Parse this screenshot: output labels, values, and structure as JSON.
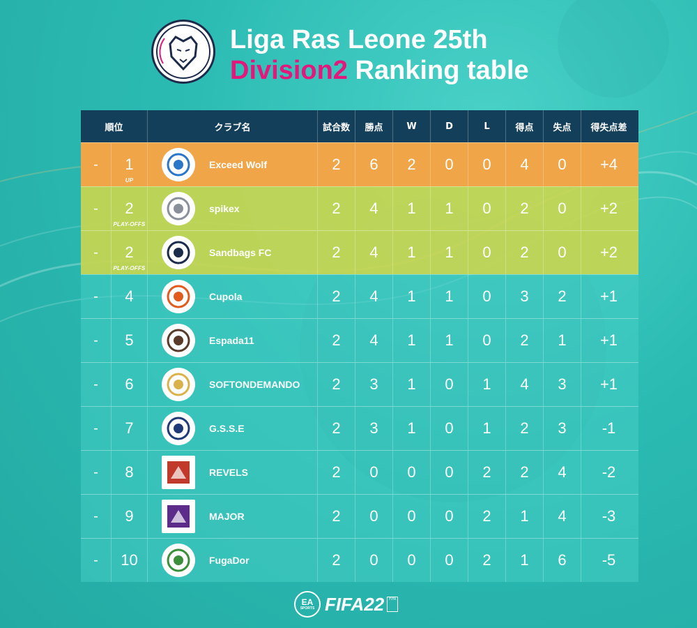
{
  "header": {
    "title_line1": "Liga Ras Leone 25th",
    "title_highlight": "Division2",
    "title_rest": " Ranking table",
    "logo_text": "Liga Ras Leone"
  },
  "columns": {
    "rank": "順位",
    "club": "クラブ名",
    "played": "試合数",
    "points": "勝点",
    "w": "W",
    "d": "D",
    "l": "L",
    "gf": "得点",
    "ga": "失点",
    "gd": "得失点差"
  },
  "rows": [
    {
      "status": "-",
      "rank": "1",
      "note": "UP",
      "club": "Exceed Wolf",
      "icon": "wolf-emblem",
      "played": "2",
      "points": "6",
      "w": "2",
      "d": "0",
      "l": "0",
      "gf": "4",
      "ga": "0",
      "gd": "+4"
    },
    {
      "status": "-",
      "rank": "2",
      "note": "PLAY-OFFS",
      "club": "spikex",
      "icon": "shoe-emblem",
      "played": "2",
      "points": "4",
      "w": "1",
      "d": "1",
      "l": "0",
      "gf": "2",
      "ga": "0",
      "gd": "+2"
    },
    {
      "status": "-",
      "rank": "2",
      "note": "PLAY-OFFS",
      "club": "Sandbags FC",
      "icon": "bottle-emblem",
      "played": "2",
      "points": "4",
      "w": "1",
      "d": "1",
      "l": "0",
      "gf": "2",
      "ga": "0",
      "gd": "+2"
    },
    {
      "status": "-",
      "rank": "4",
      "note": "",
      "club": "Cupola",
      "icon": "flame-emblem",
      "played": "2",
      "points": "4",
      "w": "1",
      "d": "1",
      "l": "0",
      "gf": "3",
      "ga": "2",
      "gd": "+1"
    },
    {
      "status": "-",
      "rank": "5",
      "note": "",
      "club": "Espada11",
      "icon": "bear-emblem",
      "played": "2",
      "points": "4",
      "w": "1",
      "d": "1",
      "l": "0",
      "gf": "2",
      "ga": "1",
      "gd": "+1"
    },
    {
      "status": "-",
      "rank": "6",
      "note": "",
      "club": "SOFTONDEMANDO",
      "icon": "wing-shield-emblem",
      "played": "2",
      "points": "3",
      "w": "1",
      "d": "0",
      "l": "1",
      "gf": "4",
      "ga": "3",
      "gd": "+1"
    },
    {
      "status": "-",
      "rank": "7",
      "note": "",
      "club": "G.S.S.E",
      "icon": "star-crest-emblem",
      "played": "2",
      "points": "3",
      "w": "1",
      "d": "0",
      "l": "1",
      "gf": "2",
      "ga": "3",
      "gd": "-1"
    },
    {
      "status": "-",
      "rank": "8",
      "note": "",
      "club": "REVELS",
      "icon": "revels-emblem",
      "played": "2",
      "points": "0",
      "w": "0",
      "d": "0",
      "l": "2",
      "gf": "2",
      "ga": "4",
      "gd": "-2"
    },
    {
      "status": "-",
      "rank": "9",
      "note": "",
      "club": "MAJOR",
      "icon": "major-emblem",
      "played": "2",
      "points": "0",
      "w": "0",
      "d": "0",
      "l": "2",
      "gf": "1",
      "ga": "4",
      "gd": "-3"
    },
    {
      "status": "-",
      "rank": "10",
      "note": "",
      "club": "FugaDor",
      "icon": "fugador-emblem",
      "played": "2",
      "points": "0",
      "w": "0",
      "d": "0",
      "l": "2",
      "gf": "1",
      "ga": "6",
      "gd": "-5"
    }
  ],
  "footer": {
    "ea_top": "EA",
    "ea_bottom": "SPORTS",
    "game": "FIFA22",
    "badge": "FIFA"
  },
  "colors": {
    "up_row": "#f0a548",
    "playoff_row": "#c8d650",
    "header_bg": "#143f5a",
    "highlight": "#e4177c"
  }
}
